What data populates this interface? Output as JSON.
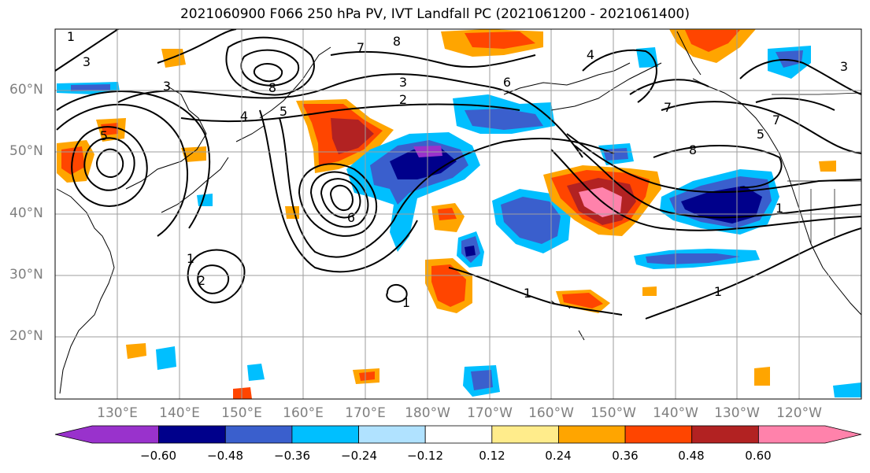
{
  "title": "2021060900 F066 250 hPa PV, IVT Landfall PC (2021061200 - 2021061400)",
  "lat_labels": [
    "60°N",
    "50°N",
    "40°N",
    "30°N",
    "20°N"
  ],
  "lon_labels": [
    "130°E",
    "140°E",
    "150°E",
    "160°E",
    "170°E",
    "180°W",
    "170°W",
    "160°W",
    "150°W",
    "140°W",
    "130°W",
    "120°W"
  ],
  "contour_labels": [
    "1",
    "1",
    "2",
    "2",
    "3",
    "3",
    "3",
    "3",
    "4",
    "4",
    "5",
    "5",
    "5",
    "6",
    "6",
    "7",
    "7",
    "7",
    "8",
    "8",
    "8",
    "1",
    "1",
    "1",
    "1"
  ],
  "colorbar": {
    "ticks": [
      "−0.60",
      "−0.48",
      "−0.36",
      "−0.24",
      "−0.12",
      "0.12",
      "0.24",
      "0.36",
      "0.48",
      "0.60"
    ],
    "colors": [
      "#9932cc",
      "#00008b",
      "#3a5fcd",
      "#00bfff",
      "#b0e2ff",
      "#ffffff",
      "#ffec8b",
      "#ffa500",
      "#ff4500",
      "#b22222",
      "#ff82ab"
    ]
  },
  "colors": {
    "grid": "#9e9e9e",
    "coast": "#000000",
    "contour": "#000000"
  }
}
